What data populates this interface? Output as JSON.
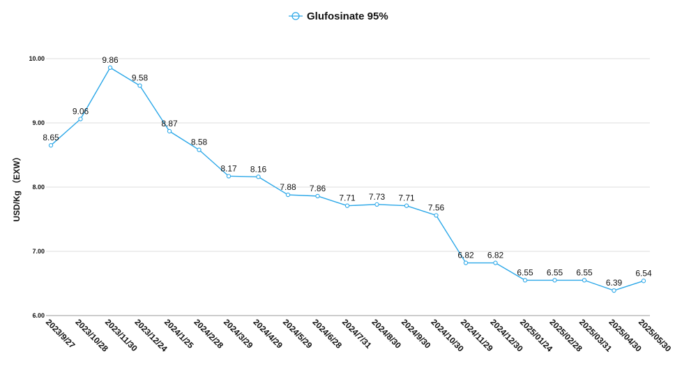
{
  "chart_data": {
    "type": "line",
    "title": "",
    "xlabel": "",
    "ylabel": "USD/Kg （EXW）",
    "ylim": [
      6.0,
      10.0
    ],
    "yticks": [
      "6.00",
      "7.00",
      "8.00",
      "9.00",
      "10.00"
    ],
    "grid": true,
    "legend_position": "top-center",
    "categories": [
      "2023/9/27",
      "2023/10/28",
      "2023/11/30",
      "2023/12/24",
      "2024/1/25",
      "2024/2/28",
      "2024/3/29",
      "2024/4/29",
      "2024/5/29",
      "2024/6/28",
      "2024/7/31",
      "2024/8/30",
      "2024/9/30",
      "2024/10/30",
      "2024/11/29",
      "2024/12/30",
      "2025/01/24",
      "2025/02/28",
      "2025/03/31",
      "2025/04/30",
      "2025/05/30"
    ],
    "series": [
      {
        "name": "Glufosinate 95%",
        "color": "#2aa7e8",
        "values": [
          8.65,
          9.06,
          9.86,
          9.58,
          8.87,
          8.58,
          8.17,
          8.16,
          7.88,
          7.86,
          7.71,
          7.73,
          7.71,
          7.56,
          6.82,
          6.82,
          6.55,
          6.55,
          6.55,
          6.39,
          6.54
        ],
        "labels": [
          "8.65",
          "9.06",
          "9.86",
          "9.58",
          "8.87",
          "8.58",
          "8.17",
          "8.16",
          "7.88",
          "7.86",
          "7.71",
          "7.73",
          "7.71",
          "7.56",
          "6.82",
          "6.82",
          "6.55",
          "6.55",
          "6.55",
          "6.39",
          "6.54"
        ]
      }
    ]
  }
}
